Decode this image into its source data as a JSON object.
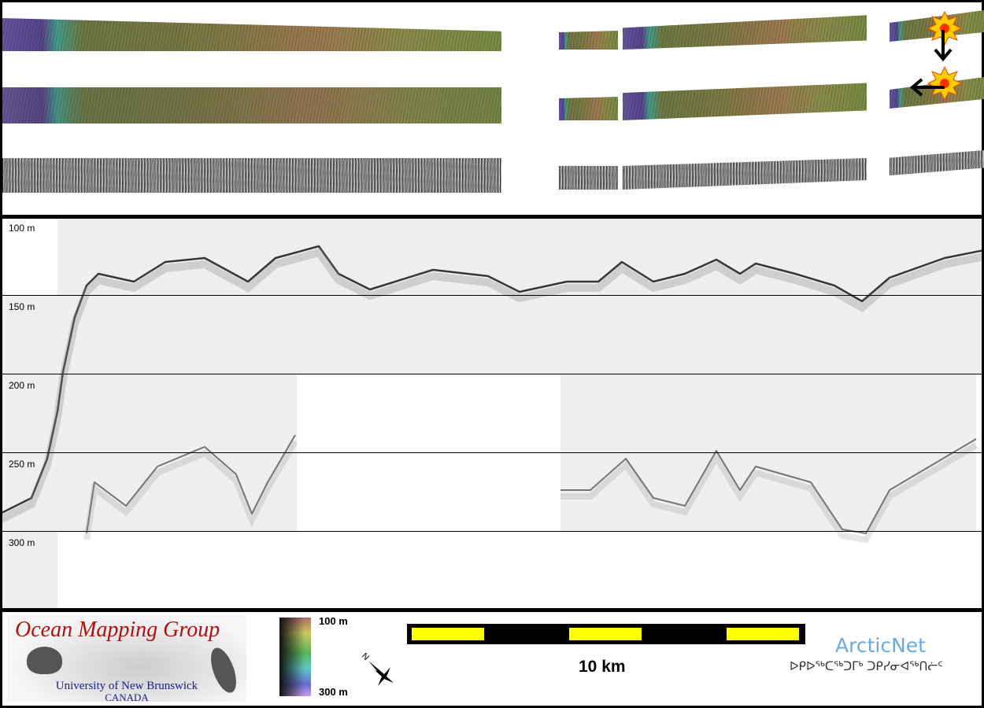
{
  "depth_axis": {
    "labels": [
      "100 m",
      "150 m",
      "200 m",
      "250 m",
      "300 m"
    ],
    "unit": "m"
  },
  "seafloor_profile": {
    "units": [
      "km",
      "m"
    ],
    "points": [
      [
        0,
        287.5
      ],
      [
        2,
        277.5
      ],
      [
        3,
        252.5
      ],
      [
        3.65,
        222.5
      ],
      [
        4,
        197.5
      ],
      [
        4.75,
        162.5
      ],
      [
        5.5,
        142.5
      ],
      [
        6.25,
        135
      ],
      [
        8.5,
        140
      ],
      [
        10.5,
        127.5
      ],
      [
        13,
        125
      ],
      [
        15.75,
        140
      ],
      [
        17.5,
        125
      ],
      [
        20.25,
        117.5
      ],
      [
        21.5,
        135
      ],
      [
        23.5,
        145
      ],
      [
        27.5,
        132.5
      ],
      [
        31,
        136.5
      ],
      [
        33,
        146.5
      ],
      [
        36,
        140
      ],
      [
        38,
        140
      ],
      [
        39.5,
        127.5
      ],
      [
        41.5,
        140
      ],
      [
        43.5,
        135
      ],
      [
        45.5,
        126
      ],
      [
        47,
        135
      ],
      [
        48,
        128.5
      ],
      [
        50.5,
        135
      ],
      [
        53,
        142.5
      ],
      [
        54.75,
        152.5
      ],
      [
        56.5,
        137.5
      ],
      [
        60,
        125
      ],
      [
        62.5,
        120
      ]
    ]
  },
  "multiple_profile": {
    "segments": [
      [
        [
          5.5,
          300
        ],
        [
          6,
          267.5
        ],
        [
          8,
          282.5
        ],
        [
          10,
          257.5
        ],
        [
          13,
          245
        ],
        [
          15,
          262.5
        ],
        [
          16,
          287.5
        ],
        [
          17,
          267.5
        ],
        [
          18.75,
          237.5
        ]
      ],
      [
        [
          35.6,
          272.5
        ],
        [
          37.5,
          272.5
        ],
        [
          39.75,
          252.5
        ],
        [
          41.5,
          277.5
        ],
        [
          43.5,
          282.5
        ],
        [
          45.5,
          247.5
        ],
        [
          47,
          272.5
        ],
        [
          48,
          257.5
        ],
        [
          51.5,
          267.5
        ],
        [
          53.5,
          297.5
        ],
        [
          55,
          300
        ],
        [
          56.5,
          272.5
        ],
        [
          62,
          240
        ]
      ]
    ]
  },
  "legend": {
    "logo_title": "Ocean Mapping Group",
    "logo_line1": "University of New Brunswick",
    "logo_line2": "CANADA",
    "colorbar_top": "100 m",
    "colorbar_bottom": "300 m",
    "north_label": "N",
    "scale_label": "10 km",
    "partner_name": "ArcticNet",
    "partner_inuktitut": "ᐅᑭᐅᖅᑕᖅᑐᒥᒃ ᑐᑭᓯᓂᐊᖅᑎᓖᑦ"
  },
  "colors": {
    "scale_yellow": "#ffff00",
    "arrow": "#000000",
    "sun": "#ffcc00",
    "arcticnet": "#6fa8dc",
    "omg_red": "#b01010",
    "omg_blue": "#1a1a8a"
  }
}
